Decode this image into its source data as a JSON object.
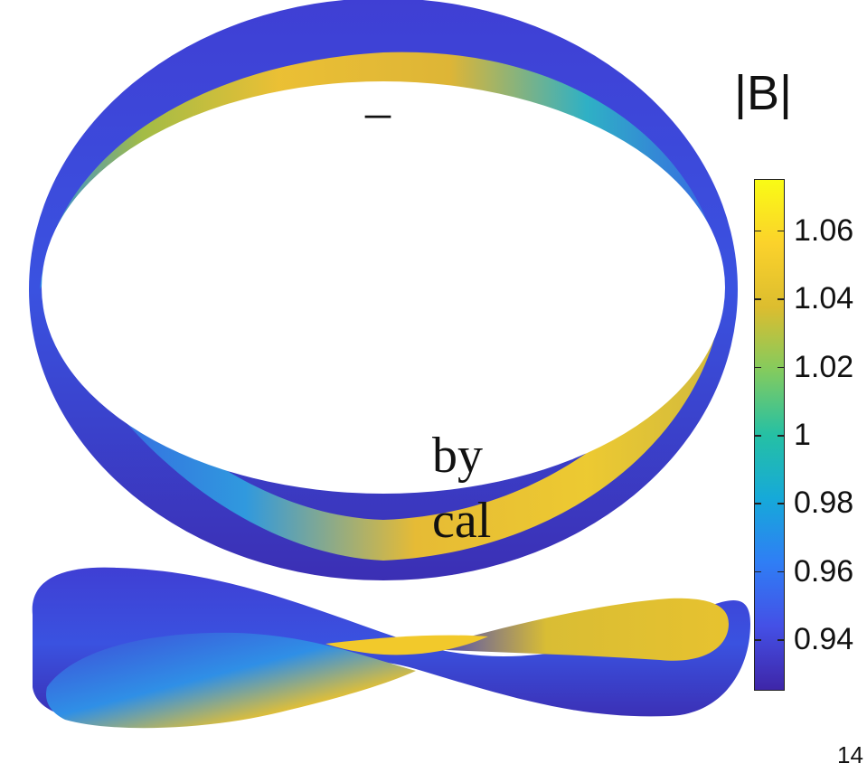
{
  "text_fragments": {
    "dash": "–",
    "line1_end": "by",
    "line2_end": "cal"
  },
  "colorbar": {
    "title": "|B|",
    "min": 0.925,
    "max": 1.075,
    "ticks": [
      "1.06",
      "1.04",
      "1.02",
      "1",
      "0.98",
      "0.96",
      "0.94"
    ],
    "tick_values": [
      1.06,
      1.04,
      1.02,
      1.0,
      0.98,
      0.96,
      0.94
    ],
    "colormap": [
      "#3e26a8",
      "#4450e6",
      "#2f7ef5",
      "#16a9d9",
      "#25c0a4",
      "#82cb5f",
      "#dcbd2f",
      "#fbd22b",
      "#f9fb15"
    ]
  },
  "figures": [
    {
      "name": "stellarator-surface-top-view"
    },
    {
      "name": "stellarator-surface-side-view"
    }
  ],
  "page_number": "14"
}
